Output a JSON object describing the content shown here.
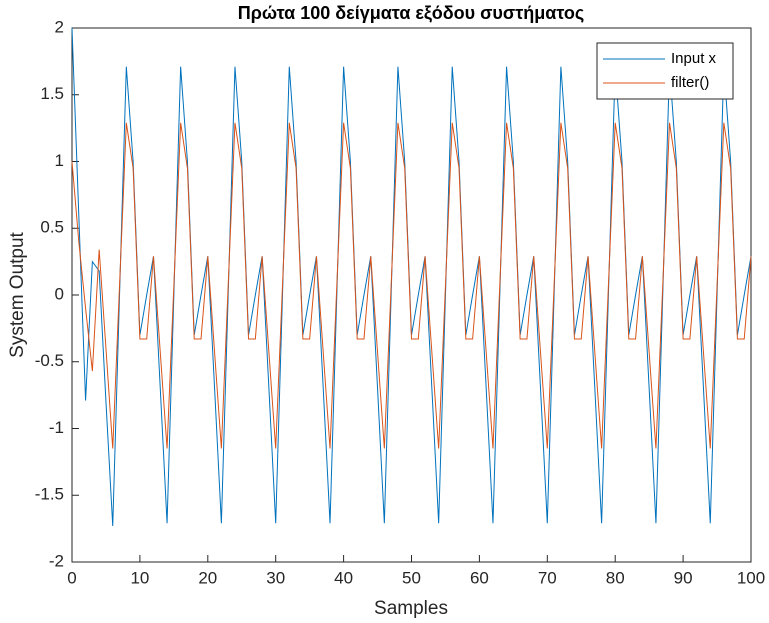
{
  "chart_data": {
    "type": "line",
    "title": "Πρώτα 100 δείγματα εξόδου συστήματος",
    "xlabel": "Samples",
    "ylabel": "System Output",
    "x": [
      0,
      1,
      2,
      3,
      4,
      5,
      6,
      7,
      8,
      9,
      10,
      11,
      12,
      13,
      14,
      15,
      16,
      17,
      18,
      19,
      20,
      21,
      22,
      23,
      24,
      25,
      26,
      27,
      28,
      29,
      30,
      31,
      32,
      33,
      34,
      35,
      36,
      37,
      38,
      39,
      40,
      41,
      42,
      43,
      44,
      45,
      46,
      47,
      48,
      49,
      50,
      51,
      52,
      53,
      54,
      55,
      56,
      57,
      58,
      59,
      60,
      61,
      62,
      63,
      64,
      65,
      66,
      67,
      68,
      69,
      70,
      71,
      72,
      73,
      74,
      75,
      76,
      77,
      78,
      79,
      80,
      81,
      82,
      83,
      84,
      85,
      86,
      87,
      88,
      89,
      90,
      91,
      92,
      93,
      94,
      95,
      96,
      97,
      98,
      99,
      100
    ],
    "series": [
      {
        "name": "Input x",
        "color": "#0072BD",
        "values": [
          2,
          0.6,
          -0.79,
          0.25,
          0.18,
          -0.8,
          -1.73,
          0,
          1.71,
          1,
          -0.3,
          0,
          0.29,
          -0.7,
          -1.71,
          0,
          1.71,
          1,
          -0.3,
          0,
          0.29,
          -0.7,
          -1.71,
          0,
          1.71,
          1,
          -0.3,
          0,
          0.29,
          -0.7,
          -1.71,
          0,
          1.71,
          1,
          -0.3,
          0,
          0.29,
          -0.7,
          -1.71,
          0,
          1.71,
          1,
          -0.3,
          0,
          0.29,
          -0.7,
          -1.71,
          0,
          1.71,
          1,
          -0.3,
          0,
          0.29,
          -0.7,
          -1.71,
          0,
          1.71,
          1,
          -0.3,
          0,
          0.29,
          -0.7,
          -1.71,
          0,
          1.71,
          1,
          -0.3,
          0,
          0.29,
          -0.7,
          -1.71,
          0,
          1.71,
          1,
          -0.3,
          0,
          0.29,
          -0.7,
          -1.71,
          0,
          1.71,
          1,
          -0.3,
          0,
          0.29,
          -0.7,
          -1.71,
          0,
          1.71,
          1,
          -0.3,
          0,
          0.29,
          -0.7,
          -1.71,
          0,
          1.71,
          1,
          -0.3,
          0,
          0.29
        ]
      },
      {
        "name": "filter()",
        "color": "#D95319",
        "values": [
          1,
          0.4,
          -0.1,
          -0.57,
          0.34,
          -0.4,
          -1.15,
          0.07,
          1.29,
          0.95,
          -0.33,
          -0.33,
          0.29,
          -0.43,
          -1.15,
          0.07,
          1.29,
          0.95,
          -0.33,
          -0.33,
          0.29,
          -0.43,
          -1.15,
          0.07,
          1.29,
          0.95,
          -0.33,
          -0.33,
          0.29,
          -0.43,
          -1.15,
          0.07,
          1.29,
          0.95,
          -0.33,
          -0.33,
          0.29,
          -0.43,
          -1.15,
          0.07,
          1.29,
          0.95,
          -0.33,
          -0.33,
          0.29,
          -0.43,
          -1.15,
          0.07,
          1.29,
          0.95,
          -0.33,
          -0.33,
          0.29,
          -0.43,
          -1.15,
          0.07,
          1.29,
          0.95,
          -0.33,
          -0.33,
          0.29,
          -0.43,
          -1.15,
          0.07,
          1.29,
          0.95,
          -0.33,
          -0.33,
          0.29,
          -0.43,
          -1.15,
          0.07,
          1.29,
          0.95,
          -0.33,
          -0.33,
          0.29,
          -0.43,
          -1.15,
          0.07,
          1.29,
          0.95,
          -0.33,
          -0.33,
          0.29,
          -0.43,
          -1.15,
          0.07,
          1.29,
          0.95,
          -0.33,
          -0.33,
          0.29,
          -0.43,
          -1.15,
          0.07,
          1.29,
          0.95,
          -0.33,
          -0.33,
          0.29
        ]
      }
    ],
    "xlim": [
      0,
      100
    ],
    "ylim": [
      -2,
      2
    ],
    "xticks": [
      0,
      10,
      20,
      30,
      40,
      50,
      60,
      70,
      80,
      90,
      100
    ],
    "yticks": [
      -2,
      -1.5,
      -1,
      -0.5,
      0,
      0.5,
      1,
      1.5,
      2
    ],
    "legend": "upper right"
  }
}
